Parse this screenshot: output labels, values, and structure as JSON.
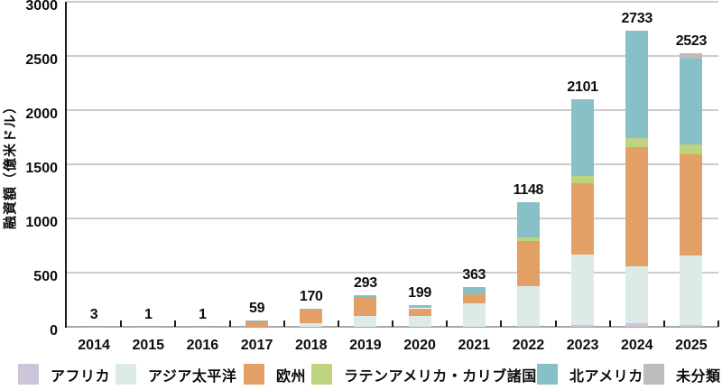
{
  "chart_data": {
    "type": "bar",
    "stacked": true,
    "title": "",
    "ylabel": "融資額（億米ドル）",
    "xlabel": "",
    "ylim": [
      0,
      3000
    ],
    "yticks": [
      0,
      500,
      1000,
      1500,
      2000,
      2500,
      3000
    ],
    "grid": true,
    "legend_position": "bottom",
    "categories": [
      "2014",
      "2015",
      "2016",
      "2017",
      "2018",
      "2019",
      "2020",
      "2021",
      "2022",
      "2023",
      "2024",
      "2025"
    ],
    "totals": [
      3,
      1,
      1,
      59,
      170,
      293,
      199,
      363,
      1148,
      2101,
      2733,
      2523
    ],
    "series": [
      {
        "name": "アフリカ",
        "color": "#cdc5d9",
        "values": [
          0,
          0,
          0,
          0,
          0,
          0,
          0,
          0,
          10,
          15,
          30,
          18
        ]
      },
      {
        "name": "アジア太平洋",
        "color": "#dcebe7",
        "values": [
          0,
          0,
          0,
          0,
          30,
          100,
          102,
          218,
          365,
          655,
          525,
          640
        ]
      },
      {
        "name": "欧州",
        "color": "#e3a066",
        "values": [
          3,
          1,
          1,
          52,
          130,
          175,
          69,
          84,
          415,
          655,
          1105,
          935
        ]
      },
      {
        "name": "ラテンアメリカ・カリブ諸国",
        "color": "#bdd37d",
        "values": [
          0,
          0,
          0,
          0,
          0,
          0,
          0,
          0,
          38,
          63,
          85,
          90
        ]
      },
      {
        "name": "北アメリカ",
        "color": "#87c0c7",
        "values": [
          0,
          0,
          0,
          7,
          10,
          18,
          28,
          61,
          320,
          713,
          988,
          790
        ]
      },
      {
        "name": "未分類",
        "color": "#bcbcbc",
        "values": [
          0,
          0,
          0,
          0,
          0,
          0,
          0,
          0,
          0,
          0,
          0,
          50
        ]
      }
    ],
    "axis_colors": {
      "grid": "#cccccc",
      "x_axis": "#a8a8a8",
      "y_axis": "#1a1a1a",
      "text": "#0d0d0d"
    }
  }
}
